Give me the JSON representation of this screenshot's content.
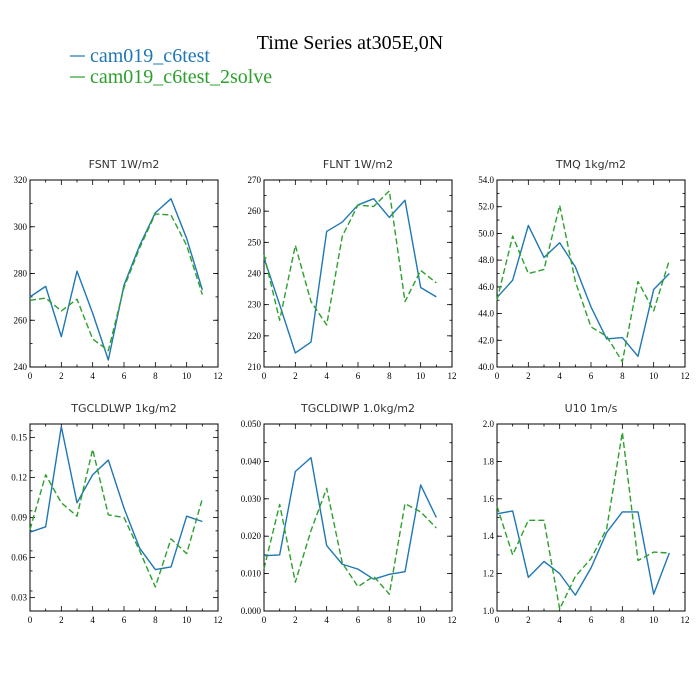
{
  "title": "Time Series at305E,0N",
  "colors": {
    "series1": "#1f77b4",
    "series2": "#2ca02c"
  },
  "legend": [
    {
      "name": "cam019_c6test",
      "color": "#1f77b4",
      "dash": ""
    },
    {
      "name": "cam019_c6test_2solve",
      "color": "#2ca02c",
      "dash": "6,3"
    }
  ],
  "chart_data": [
    {
      "type": "line",
      "title": "FSNT   1W/m2",
      "x": [
        0,
        1,
        2,
        3,
        4,
        5,
        6,
        7,
        8,
        9,
        10,
        11
      ],
      "xlim": [
        0,
        12
      ],
      "xticks": [
        0,
        2,
        4,
        6,
        8,
        10,
        12
      ],
      "ylim": [
        240,
        320
      ],
      "yticks": [
        240,
        260,
        280,
        300,
        320
      ],
      "ytick_labels": [
        "240",
        "260",
        "280",
        "300",
        "320"
      ],
      "series": [
        {
          "name": "cam019_c6test",
          "values": [
            270,
            274.5,
            253,
            281,
            263,
            243,
            275,
            292,
            306,
            312,
            295,
            273
          ]
        },
        {
          "name": "cam019_c6test_2solve",
          "values": [
            268.5,
            269.5,
            264,
            269,
            252,
            247,
            274,
            291,
            305.5,
            305,
            292,
            271
          ]
        }
      ]
    },
    {
      "type": "line",
      "title": "FLNT   1W/m2",
      "x": [
        0,
        1,
        2,
        3,
        4,
        5,
        6,
        7,
        8,
        9,
        10,
        11
      ],
      "xlim": [
        0,
        12
      ],
      "xticks": [
        0,
        2,
        4,
        6,
        8,
        10,
        12
      ],
      "ylim": [
        210,
        270
      ],
      "yticks": [
        210,
        220,
        230,
        240,
        250,
        260,
        270
      ],
      "ytick_labels": [
        "210",
        "220",
        "230",
        "240",
        "250",
        "260",
        "270"
      ],
      "series": [
        {
          "name": "cam019_c6test",
          "values": [
            245,
            230,
            214.5,
            218,
            253.5,
            256.5,
            262,
            264,
            258,
            263.5,
            235.5,
            232.5
          ]
        },
        {
          "name": "cam019_c6test_2solve",
          "values": [
            246,
            225,
            249,
            231,
            223.5,
            252,
            262,
            261.5,
            266.5,
            231,
            241,
            237
          ]
        }
      ]
    },
    {
      "type": "line",
      "title": "TMQ   1kg/m2",
      "x": [
        0,
        1,
        2,
        3,
        4,
        5,
        6,
        7,
        8,
        9,
        10,
        11
      ],
      "xlim": [
        0,
        12
      ],
      "xticks": [
        0,
        2,
        4,
        6,
        8,
        10,
        12
      ],
      "ylim": [
        40,
        54
      ],
      "yticks": [
        40,
        42,
        44,
        46,
        48,
        50,
        52,
        54
      ],
      "ytick_labels": [
        "40.0",
        "42.0",
        "44.0",
        "46.0",
        "48.0",
        "50.0",
        "52.0",
        "54.0"
      ],
      "series": [
        {
          "name": "cam019_c6test",
          "values": [
            45.2,
            46.5,
            50.6,
            48.2,
            49.3,
            47.5,
            44.5,
            42.1,
            42.2,
            40.8,
            45.8,
            47
          ]
        },
        {
          "name": "cam019_c6test_2solve",
          "values": [
            45,
            49.8,
            47,
            47.3,
            52.1,
            46.4,
            43,
            42.3,
            40.4,
            46.4,
            44.2,
            48
          ]
        }
      ]
    },
    {
      "type": "line",
      "title": "TGCLDLWP   1kg/m2",
      "x": [
        0,
        1,
        2,
        3,
        4,
        5,
        6,
        7,
        8,
        9,
        10,
        11
      ],
      "xlim": [
        0,
        12
      ],
      "xticks": [
        0,
        2,
        4,
        6,
        8,
        10,
        12
      ],
      "ylim": [
        0.02,
        0.16
      ],
      "yticks": [
        0.03,
        0.06,
        0.09,
        0.12,
        0.15
      ],
      "ytick_labels": [
        "0.03",
        "0.06",
        "0.09",
        "0.12",
        "0.15"
      ],
      "series": [
        {
          "name": "cam019_c6test",
          "values": [
            0.079,
            0.083,
            0.158,
            0.101,
            0.122,
            0.133,
            0.097,
            0.067,
            0.051,
            0.053,
            0.091,
            0.087
          ]
        },
        {
          "name": "cam019_c6test_2solve",
          "values": [
            0.081,
            0.122,
            0.101,
            0.091,
            0.141,
            0.092,
            0.09,
            0.065,
            0.038,
            0.074,
            0.063,
            0.104
          ]
        }
      ]
    },
    {
      "type": "line",
      "title": "TGCLDIWP   1.0kg/m2",
      "x": [
        0,
        1,
        2,
        3,
        4,
        5,
        6,
        7,
        8,
        9,
        10,
        11
      ],
      "xlim": [
        0,
        12
      ],
      "xticks": [
        0,
        2,
        4,
        6,
        8,
        10,
        12
      ],
      "ylim": [
        0,
        0.05
      ],
      "yticks": [
        0,
        0.01,
        0.02,
        0.03,
        0.04,
        0.05
      ],
      "ytick_labels": [
        "0.000",
        "0.010",
        "0.020",
        "0.030",
        "0.040",
        "0.050"
      ],
      "series": [
        {
          "name": "cam019_c6test",
          "values": [
            0.0148,
            0.015,
            0.0373,
            0.041,
            0.0175,
            0.0125,
            0.0112,
            0.0085,
            0.0098,
            0.0105,
            0.0337,
            0.025
          ]
        },
        {
          "name": "cam019_c6test_2solve",
          "values": [
            0.0113,
            0.0285,
            0.0077,
            0.0215,
            0.0328,
            0.0128,
            0.0065,
            0.0093,
            0.0045,
            0.0287,
            0.0265,
            0.0222
          ]
        }
      ]
    },
    {
      "type": "line",
      "title": "U10   1m/s",
      "x": [
        0,
        1,
        2,
        3,
        4,
        5,
        6,
        7,
        8,
        9,
        10,
        11
      ],
      "xlim": [
        0,
        12
      ],
      "xticks": [
        0,
        2,
        4,
        6,
        8,
        10,
        12
      ],
      "ylim": [
        1.0,
        2.0
      ],
      "yticks": [
        1.0,
        1.2,
        1.4,
        1.6,
        1.8,
        2.0
      ],
      "ytick_labels": [
        "1.0",
        "1.2",
        "1.4",
        "1.6",
        "1.8",
        "2.0"
      ],
      "series": [
        {
          "name": "cam019_c6test",
          "values": [
            1.52,
            1.535,
            1.18,
            1.265,
            1.2,
            1.085,
            1.23,
            1.42,
            1.53,
            1.53,
            1.09,
            1.31
          ]
        },
        {
          "name": "cam019_c6test_2solve",
          "values": [
            1.56,
            1.3,
            1.485,
            1.485,
            1.01,
            1.185,
            1.28,
            1.44,
            1.955,
            1.27,
            1.315,
            1.31
          ]
        }
      ]
    }
  ]
}
